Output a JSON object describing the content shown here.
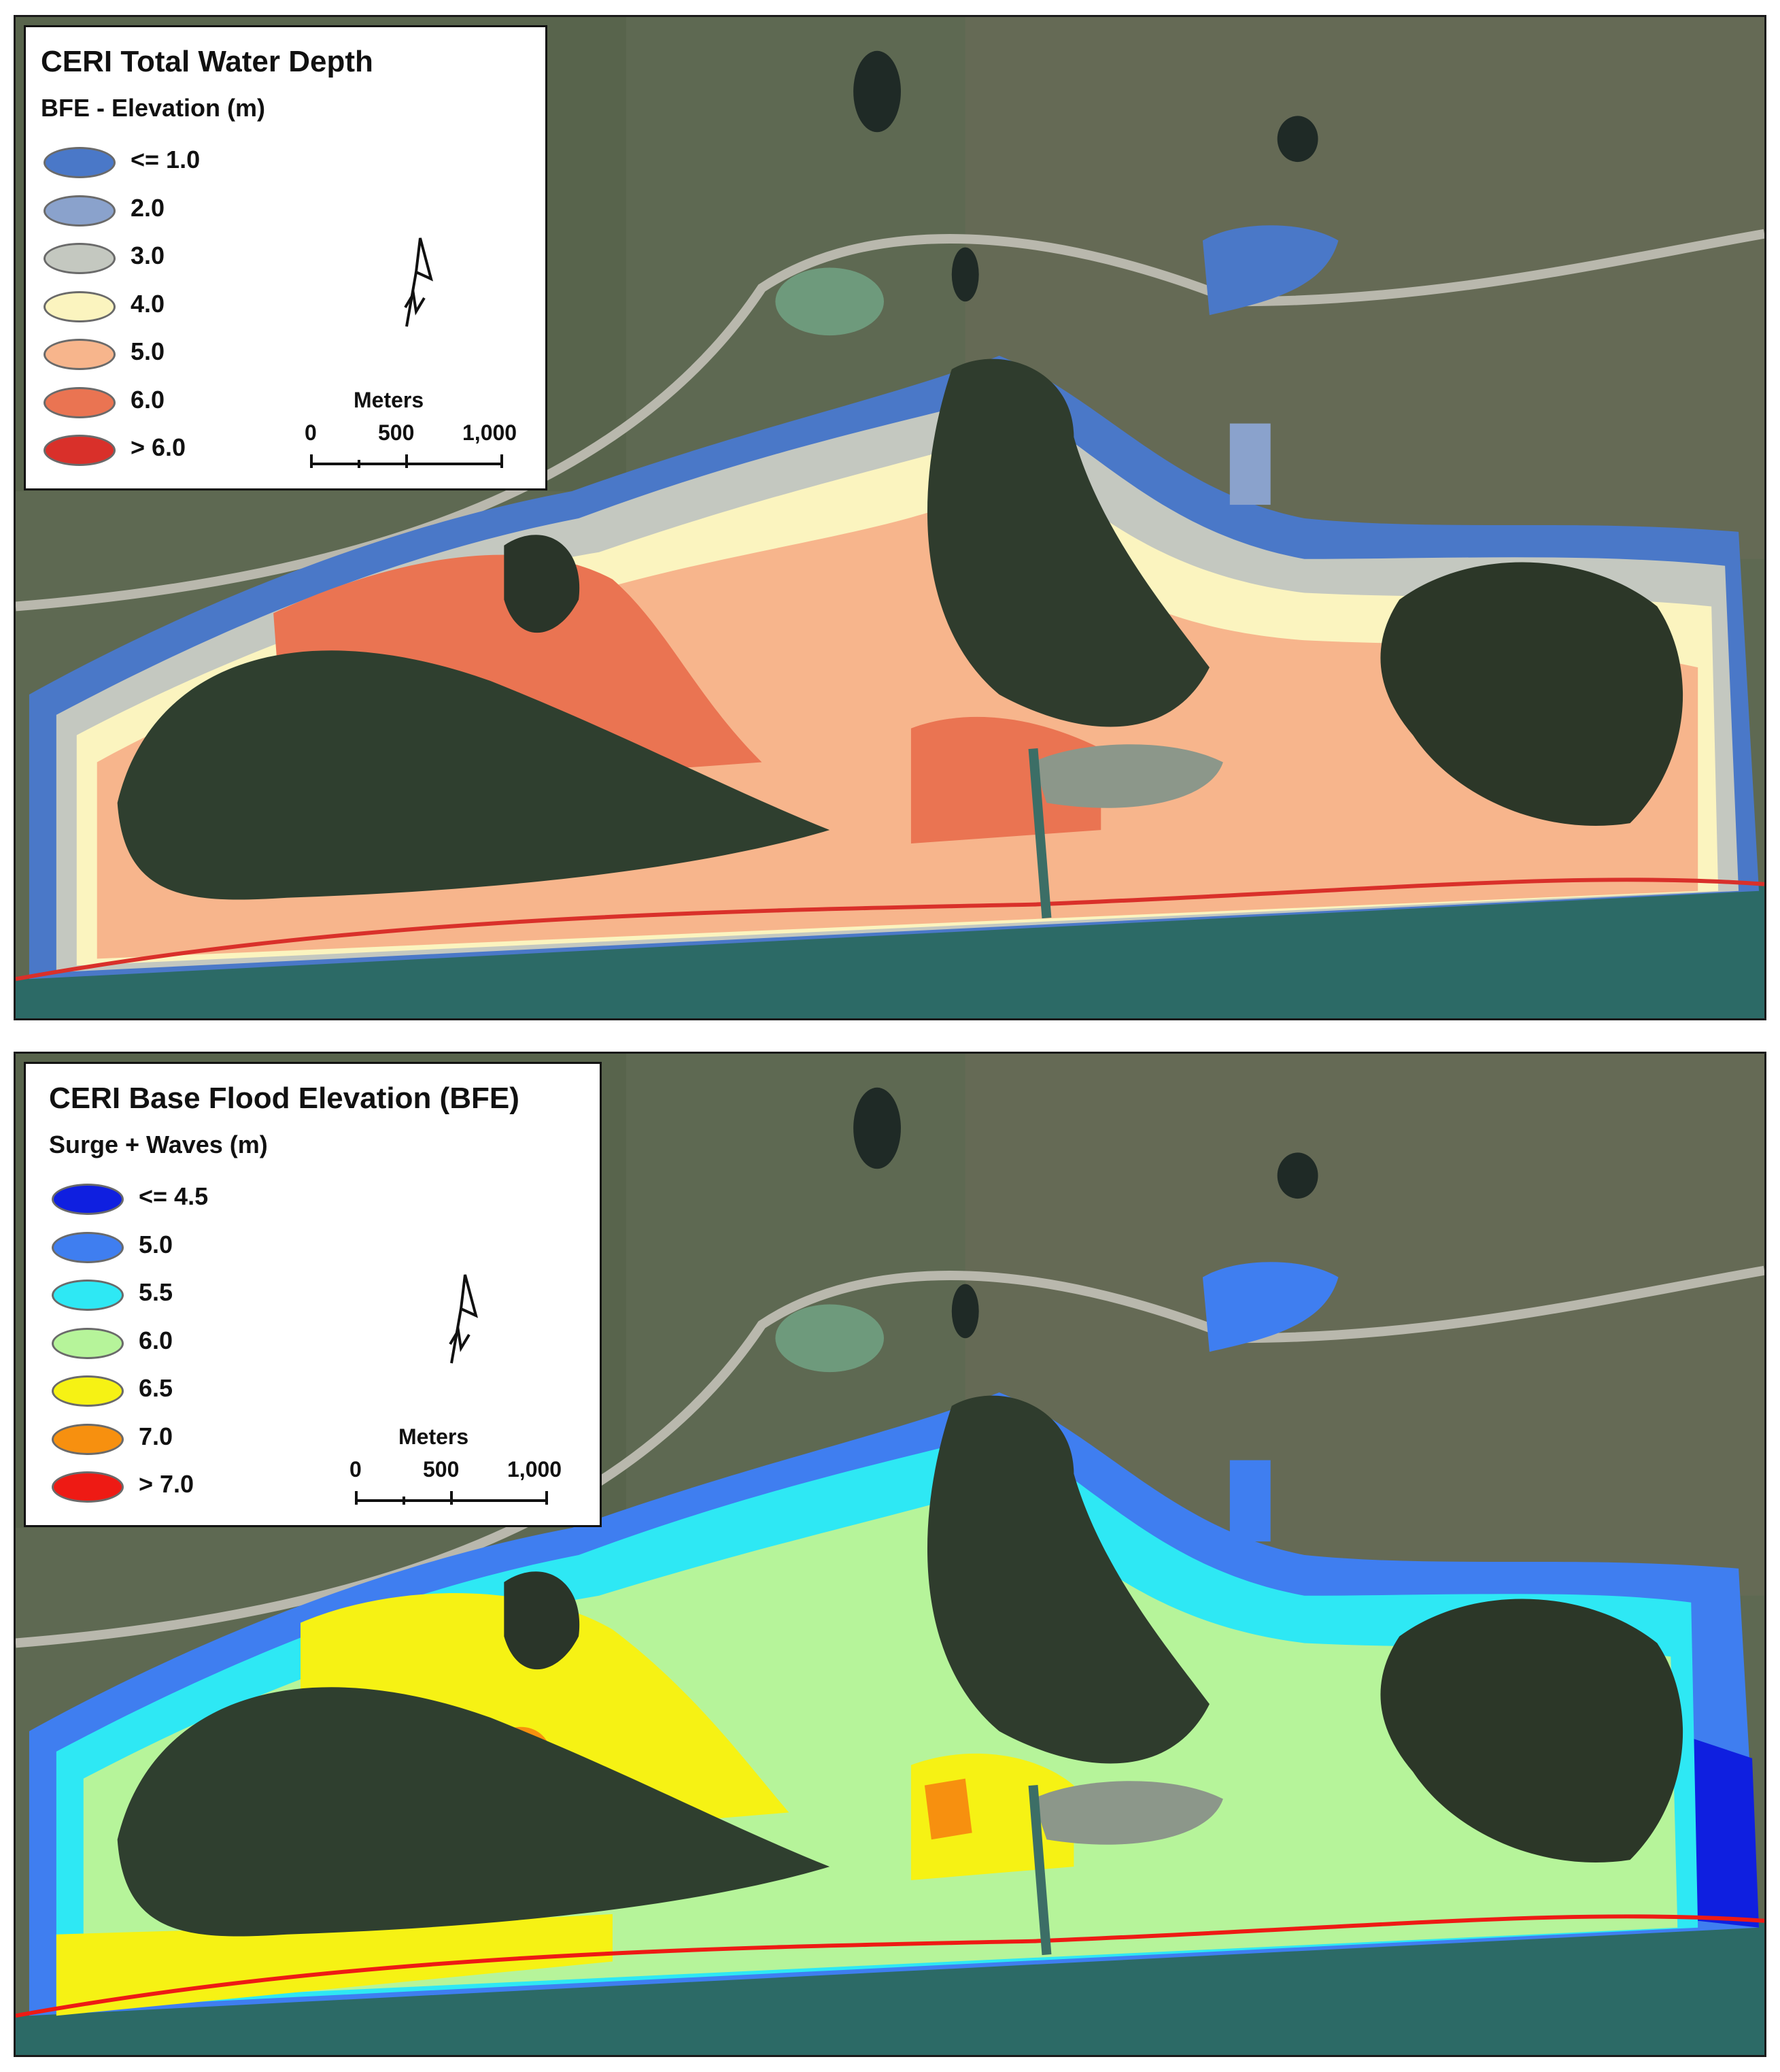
{
  "panels": [
    {
      "legend": {
        "title": "CERI Total Water Depth",
        "subtitle": "BFE - Elevation (m)",
        "items": [
          {
            "label": "<= 1.0",
            "color": "#4a78c8"
          },
          {
            "label": "2.0",
            "color": "#8aa2cc"
          },
          {
            "label": "3.0",
            "color": "#c4c8c0"
          },
          {
            "label": "4.0",
            "color": "#fbf4bf"
          },
          {
            "label": "5.0",
            "color": "#f7b58c"
          },
          {
            "label": "6.0",
            "color": "#ea7452"
          },
          {
            "label": "> 6.0",
            "color": "#d9302a"
          }
        ]
      },
      "scale_bar": {
        "units": "Meters",
        "ticks": [
          "0",
          "500",
          "1,000"
        ]
      }
    },
    {
      "legend": {
        "title": "CERI Base Flood Elevation (BFE)",
        "subtitle": "Surge + Waves (m)",
        "items": [
          {
            "label": "<= 4.5",
            "color": "#0f1fe0"
          },
          {
            "label": "5.0",
            "color": "#3f7ef0"
          },
          {
            "label": "5.5",
            "color": "#2ee8f4"
          },
          {
            "label": "6.0",
            "color": "#b6f49a"
          },
          {
            "label": "6.5",
            "color": "#f6f214"
          },
          {
            "label": "7.0",
            "color": "#f7900f"
          },
          {
            "label": "> 7.0",
            "color": "#ee1a14"
          }
        ]
      },
      "scale_bar": {
        "units": "Meters",
        "ticks": [
          "0",
          "500",
          "1,000"
        ]
      }
    }
  ]
}
